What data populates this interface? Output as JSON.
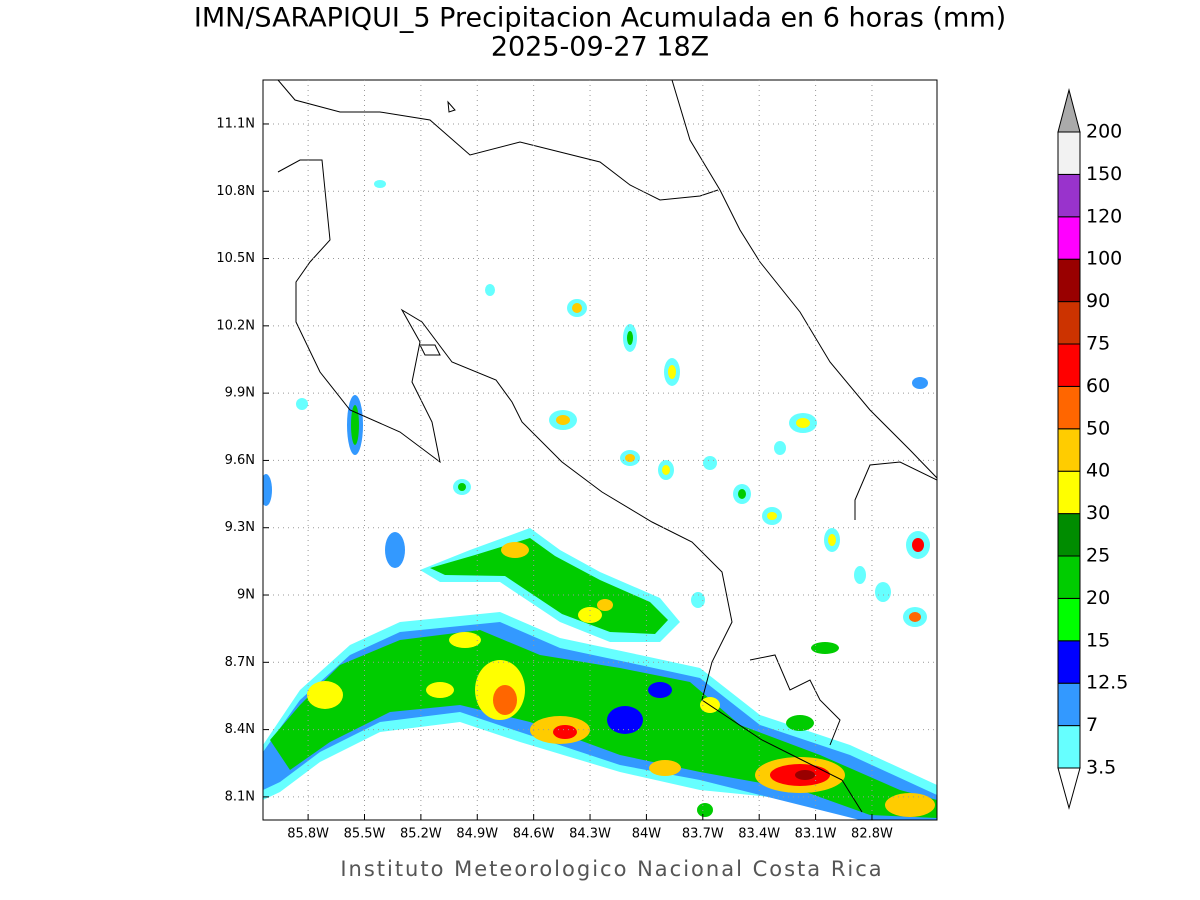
{
  "chart_data": {
    "type": "map",
    "title": "IMN/SARAPIQUI_5 Precipitacion Acumulada en 6 horas (mm)",
    "subtitle": "2025-09-27 18Z",
    "footer": "Instituto Meteorologico Nacional Costa Rica",
    "xlim": [
      -86.04,
      -82.454
    ],
    "ylim": [
      7.997,
      11.296
    ],
    "xticks": [
      {
        "value": -85.8,
        "label": "85.8W"
      },
      {
        "value": -85.5,
        "label": "85.5W"
      },
      {
        "value": -85.2,
        "label": "85.2W"
      },
      {
        "value": -84.9,
        "label": "84.9W"
      },
      {
        "value": -84.6,
        "label": "84.6W"
      },
      {
        "value": -84.3,
        "label": "84.3W"
      },
      {
        "value": -84,
        "label": "84W"
      },
      {
        "value": -83.7,
        "label": "83.7W"
      },
      {
        "value": -83.4,
        "label": "83.4W"
      },
      {
        "value": -83.1,
        "label": "83.1W"
      },
      {
        "value": -82.8,
        "label": "82.8W"
      }
    ],
    "yticks": [
      {
        "value": 8.1,
        "label": "8.1N"
      },
      {
        "value": 8.4,
        "label": "8.4N"
      },
      {
        "value": 8.7,
        "label": "8.7N"
      },
      {
        "value": 9,
        "label": "9N"
      },
      {
        "value": 9.3,
        "label": "9.3N"
      },
      {
        "value": 9.6,
        "label": "9.6N"
      },
      {
        "value": 9.9,
        "label": "9.9N"
      },
      {
        "value": 10.2,
        "label": "10.2N"
      },
      {
        "value": 10.5,
        "label": "10.5N"
      },
      {
        "value": 10.8,
        "label": "10.8N"
      },
      {
        "value": 11.1,
        "label": "11.1N"
      }
    ],
    "grid": true,
    "colorbar": {
      "levels": [
        3.5,
        7,
        12.5,
        15,
        20,
        25,
        30,
        40,
        50,
        60,
        75,
        90,
        100,
        120,
        150,
        200
      ],
      "colors": [
        "#ffffff",
        "#66ffff",
        "#3399ff",
        "#0000ff",
        "#00ff00",
        "#00cc00",
        "#008c00",
        "#ffff00",
        "#ffcc00",
        "#ff6600",
        "#ff0000",
        "#cc3300",
        "#990000",
        "#ff00ff",
        "#9933cc",
        "#f2f2f2",
        "#aaaaaa"
      ]
    }
  }
}
